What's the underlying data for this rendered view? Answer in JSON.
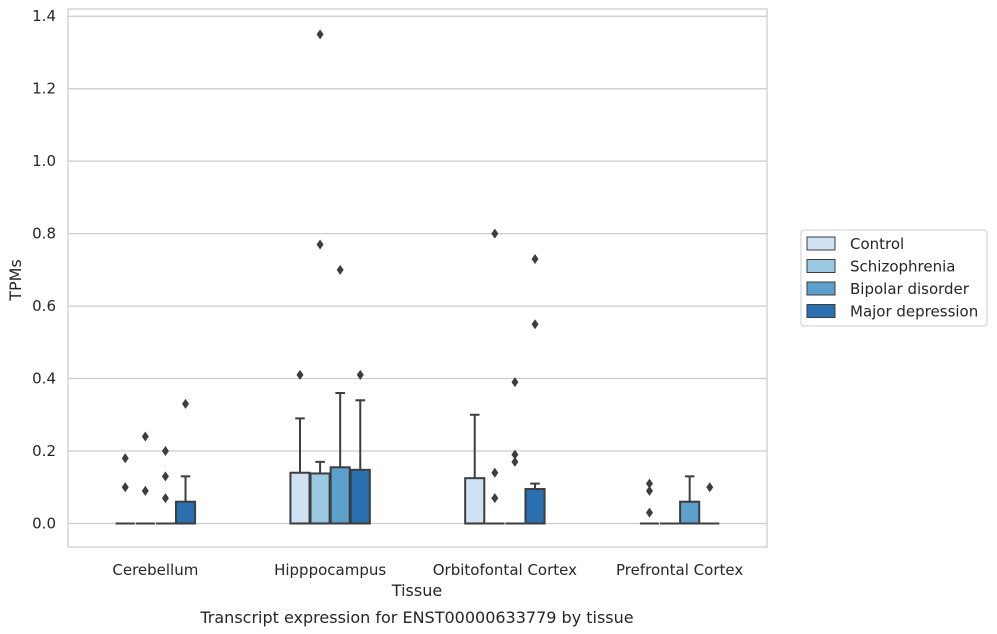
{
  "caption": "Transcript expression for ENST00000633779 by tissue",
  "chart_data": {
    "type": "box",
    "xlabel": "Tissue",
    "ylabel": "TPMs",
    "ylim": [
      -0.065,
      1.42
    ],
    "yticks": [
      "0.0",
      "0.2",
      "0.4",
      "0.6",
      "0.8",
      "1.0",
      "1.2",
      "1.4"
    ],
    "ytick_values": [
      0.0,
      0.2,
      0.4,
      0.6,
      0.8,
      1.0,
      1.2,
      1.4
    ],
    "grid": true,
    "legend_position": "right",
    "categories": [
      "Cerebellum",
      "Hipppocampus",
      "Orbitofontal Cortex",
      "Prefrontal Cortex"
    ],
    "series": [
      {
        "name": "Control",
        "color": "#cfe1f2",
        "boxes": [
          {
            "q1": 0.0,
            "median": 0.0,
            "q3": 0.0,
            "whisker_low": 0.0,
            "whisker_high": 0.0,
            "outliers": [
              0.18,
              0.1
            ]
          },
          {
            "q1": 0.0,
            "median": 0.0,
            "q3": 0.14,
            "whisker_low": 0.0,
            "whisker_high": 0.29,
            "outliers": [
              0.41
            ]
          },
          {
            "q1": 0.0,
            "median": 0.0,
            "q3": 0.125,
            "whisker_low": 0.0,
            "whisker_high": 0.3,
            "outliers": []
          },
          {
            "q1": 0.0,
            "median": 0.0,
            "q3": 0.0,
            "whisker_low": 0.0,
            "whisker_high": 0.0,
            "outliers": [
              0.11,
              0.09,
              0.03
            ]
          }
        ]
      },
      {
        "name": "Schizophrenia",
        "color": "#9ac8e0",
        "boxes": [
          {
            "q1": 0.0,
            "median": 0.0,
            "q3": 0.0,
            "whisker_low": 0.0,
            "whisker_high": 0.0,
            "outliers": [
              0.24,
              0.09
            ]
          },
          {
            "q1": 0.0,
            "median": 0.0,
            "q3": 0.138,
            "whisker_low": 0.0,
            "whisker_high": 0.17,
            "outliers": [
              1.35,
              0.77
            ]
          },
          {
            "q1": 0.0,
            "median": 0.0,
            "q3": 0.0,
            "whisker_low": 0.0,
            "whisker_high": 0.0,
            "outliers": [
              0.8,
              0.14,
              0.07
            ]
          },
          {
            "q1": 0.0,
            "median": 0.0,
            "q3": 0.0,
            "whisker_low": 0.0,
            "whisker_high": 0.0,
            "outliers": []
          }
        ]
      },
      {
        "name": "Bipolar disorder",
        "color": "#5da0cb",
        "boxes": [
          {
            "q1": 0.0,
            "median": 0.0,
            "q3": 0.0,
            "whisker_low": 0.0,
            "whisker_high": 0.0,
            "outliers": [
              0.2,
              0.13,
              0.07
            ]
          },
          {
            "q1": 0.0,
            "median": 0.0,
            "q3": 0.155,
            "whisker_low": 0.0,
            "whisker_high": 0.36,
            "outliers": [
              0.7
            ]
          },
          {
            "q1": 0.0,
            "median": 0.0,
            "q3": 0.0,
            "whisker_low": 0.0,
            "whisker_high": 0.0,
            "outliers": [
              0.39,
              0.19,
              0.17
            ]
          },
          {
            "q1": 0.0,
            "median": 0.0,
            "q3": 0.06,
            "whisker_low": 0.0,
            "whisker_high": 0.13,
            "outliers": []
          }
        ]
      },
      {
        "name": "Major depression",
        "color": "#2a6fb0",
        "boxes": [
          {
            "q1": 0.0,
            "median": 0.0,
            "q3": 0.06,
            "whisker_low": 0.0,
            "whisker_high": 0.13,
            "outliers": [
              0.33
            ]
          },
          {
            "q1": 0.0,
            "median": 0.0,
            "q3": 0.148,
            "whisker_low": 0.0,
            "whisker_high": 0.34,
            "outliers": [
              0.41
            ]
          },
          {
            "q1": 0.0,
            "median": 0.0,
            "q3": 0.095,
            "whisker_low": 0.0,
            "whisker_high": 0.11,
            "outliers": [
              0.73,
              0.55
            ]
          },
          {
            "q1": 0.0,
            "median": 0.0,
            "q3": 0.0,
            "whisker_low": 0.0,
            "whisker_high": 0.0,
            "outliers": [
              0.1
            ]
          }
        ]
      }
    ]
  }
}
